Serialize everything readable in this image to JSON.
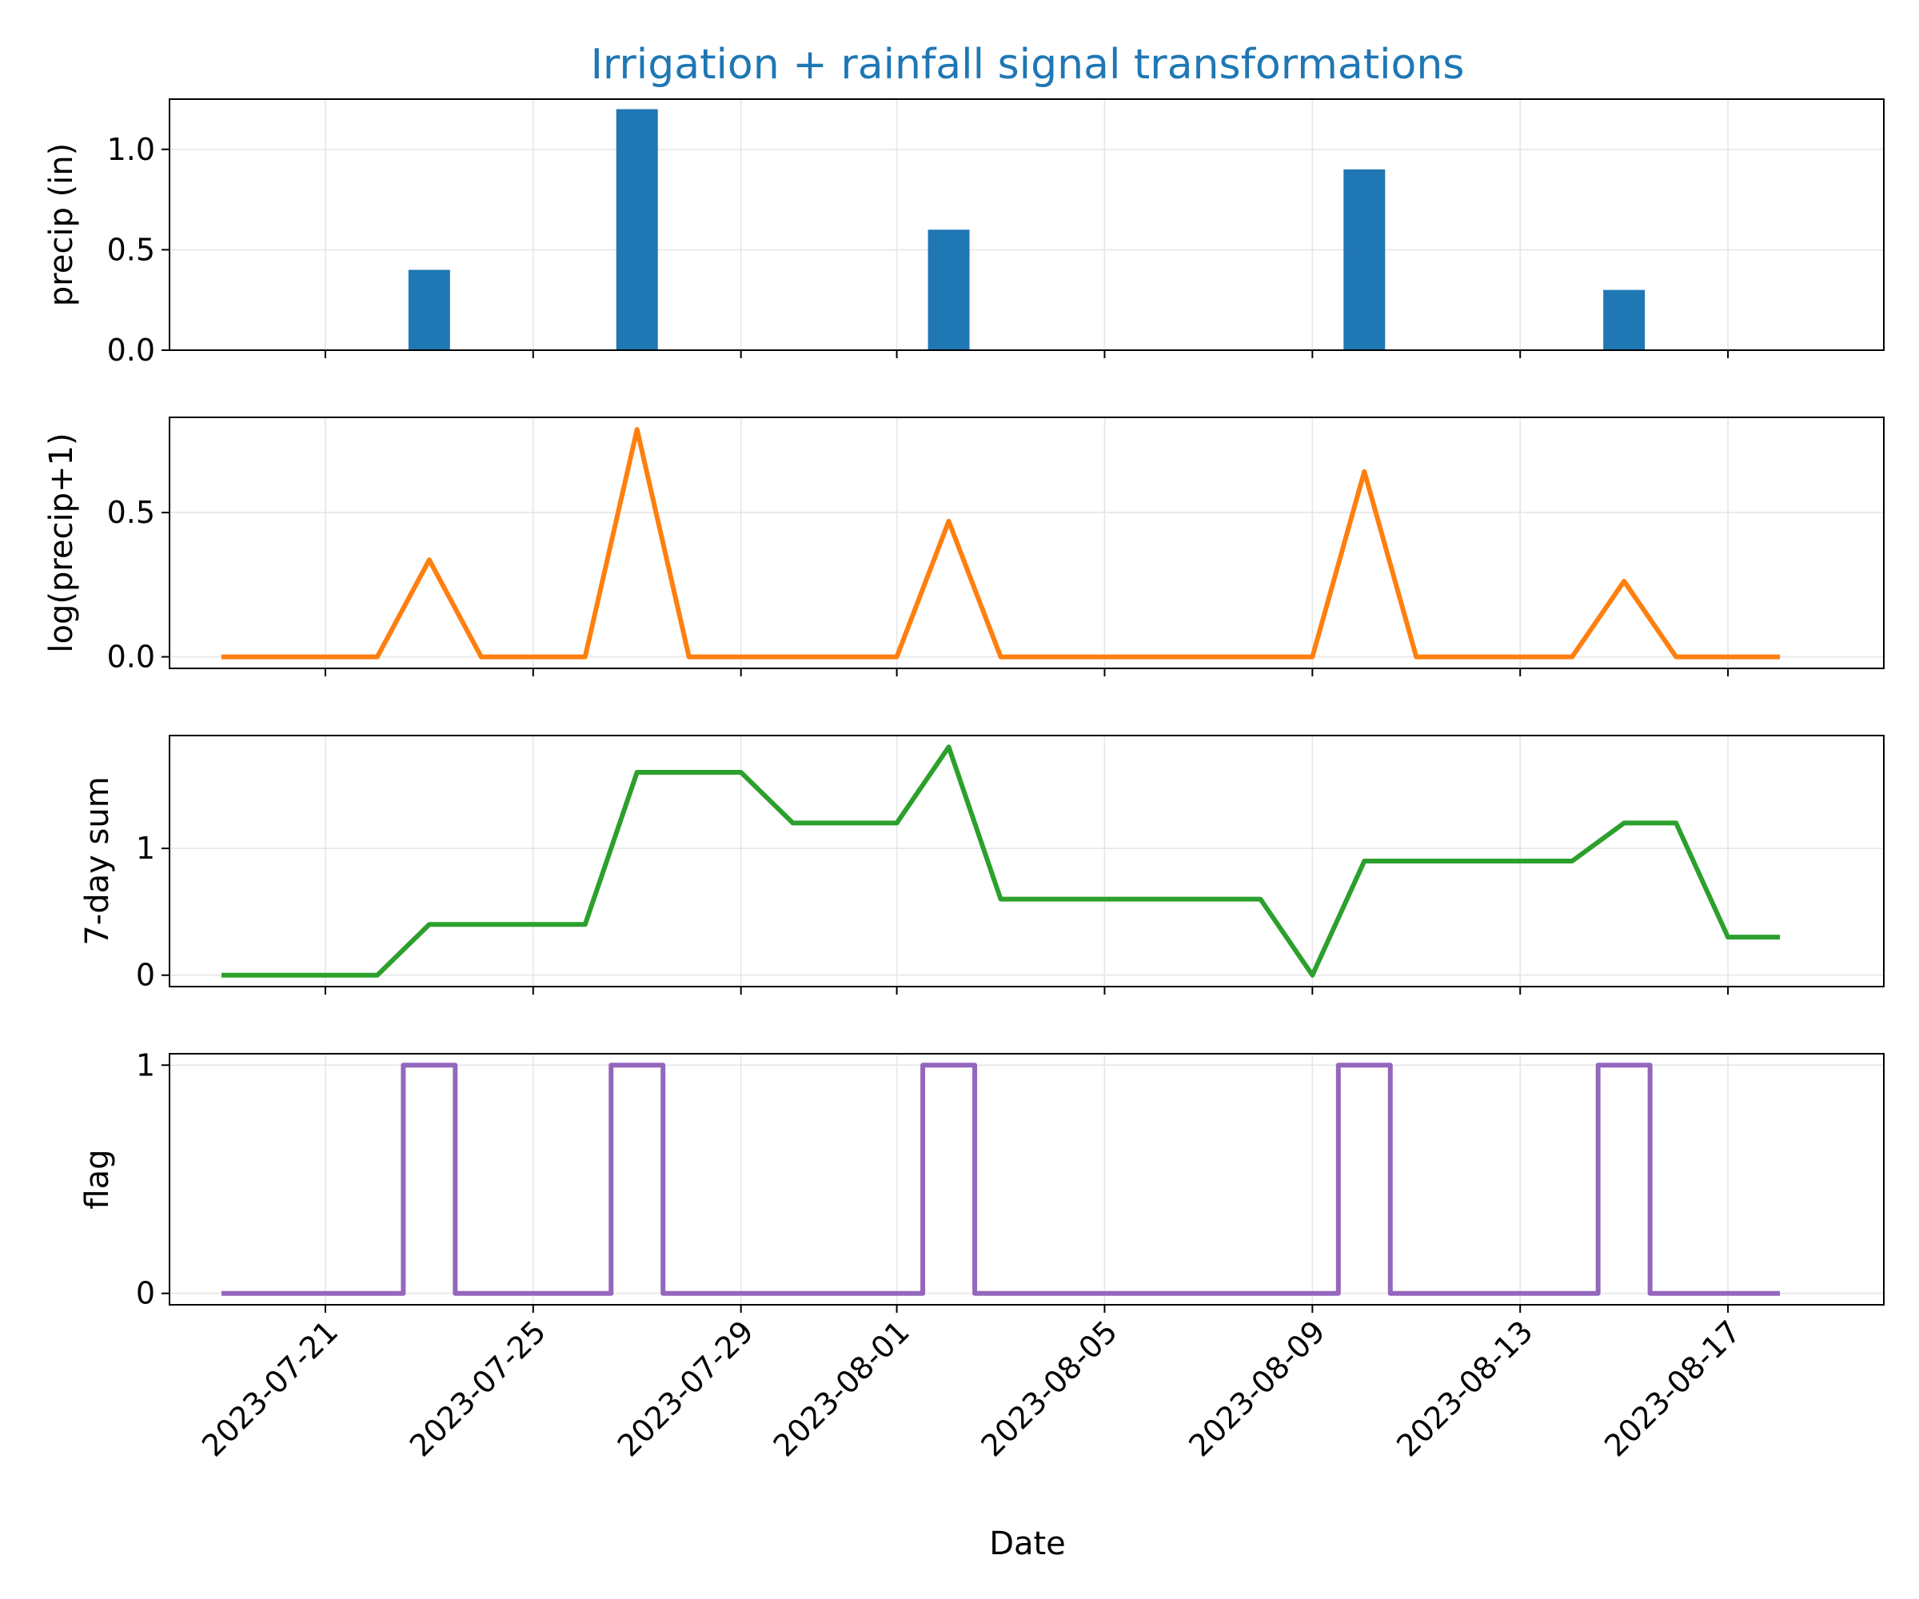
{
  "chart_data": {
    "type": "multi-panel",
    "title": "Irrigation + rainfall signal transformations",
    "title_color": "#1f77b4",
    "xlabel": "Date",
    "x_ticks": [
      "2023-07-21",
      "2023-07-25",
      "2023-07-29",
      "2023-08-01",
      "2023-08-05",
      "2023-08-09",
      "2023-08-13",
      "2023-08-17"
    ],
    "x_range": [
      "2023-07-18",
      "2023-08-20"
    ],
    "x": [
      "2023-07-19",
      "2023-07-20",
      "2023-07-21",
      "2023-07-22",
      "2023-07-23",
      "2023-07-24",
      "2023-07-25",
      "2023-07-26",
      "2023-07-27",
      "2023-07-28",
      "2023-07-29",
      "2023-07-30",
      "2023-07-31",
      "2023-08-01",
      "2023-08-02",
      "2023-08-03",
      "2023-08-04",
      "2023-08-05",
      "2023-08-06",
      "2023-08-07",
      "2023-08-08",
      "2023-08-09",
      "2023-08-10",
      "2023-08-11",
      "2023-08-12",
      "2023-08-13",
      "2023-08-14",
      "2023-08-15",
      "2023-08-16",
      "2023-08-17",
      "2023-08-18"
    ],
    "grid": true,
    "panels": [
      {
        "type": "bar",
        "ylabel": "precip (in)",
        "color": "#1f77b4",
        "ylim": [
          0,
          1.25
        ],
        "yticks": [
          0.0,
          0.5,
          1.0
        ],
        "ytick_labels": [
          "0.0",
          "0.5",
          "1.0"
        ],
        "values": [
          0,
          0,
          0,
          0,
          0.4,
          0,
          0,
          0,
          1.2,
          0,
          0,
          0,
          0,
          0,
          0.6,
          0,
          0,
          0,
          0,
          0,
          0,
          0,
          0.9,
          0,
          0,
          0,
          0,
          0.3,
          0,
          0,
          0
        ]
      },
      {
        "type": "line",
        "ylabel": "log(precip+1)",
        "color": "#ff7f0e",
        "ylim": [
          -0.04,
          0.83
        ],
        "yticks": [
          0.0,
          0.5
        ],
        "ytick_labels": [
          "0.0",
          "0.5"
        ],
        "values": [
          0,
          0,
          0,
          0,
          0.336,
          0,
          0,
          0,
          0.788,
          0,
          0,
          0,
          0,
          0,
          0.47,
          0,
          0,
          0,
          0,
          0,
          0,
          0,
          0.642,
          0,
          0,
          0,
          0,
          0.262,
          0,
          0,
          0
        ]
      },
      {
        "type": "line",
        "ylabel": "7-day sum",
        "color": "#2ca02c",
        "ylim": [
          -0.09,
          1.89
        ],
        "yticks": [
          0,
          1
        ],
        "ytick_labels": [
          "0",
          "1"
        ],
        "values": [
          0,
          0,
          0,
          0,
          0.4,
          0.4,
          0.4,
          0.4,
          1.6,
          1.6,
          1.6,
          1.2,
          1.2,
          1.2,
          1.8,
          0.6,
          0.6,
          0.6,
          0.6,
          0.6,
          0.6,
          0,
          0.9,
          0.9,
          0.9,
          0.9,
          0.9,
          1.2,
          1.2,
          0.3,
          0.3
        ]
      },
      {
        "type": "step",
        "ylabel": "flag",
        "color": "#9467bd",
        "ylim": [
          -0.05,
          1.05
        ],
        "yticks": [
          0,
          1
        ],
        "ytick_labels": [
          "0",
          "1"
        ],
        "values": [
          0,
          0,
          0,
          0,
          1,
          0,
          0,
          0,
          1,
          0,
          0,
          0,
          0,
          0,
          1,
          0,
          0,
          0,
          0,
          0,
          0,
          0,
          1,
          0,
          0,
          0,
          0,
          1,
          0,
          0,
          0
        ]
      }
    ]
  }
}
